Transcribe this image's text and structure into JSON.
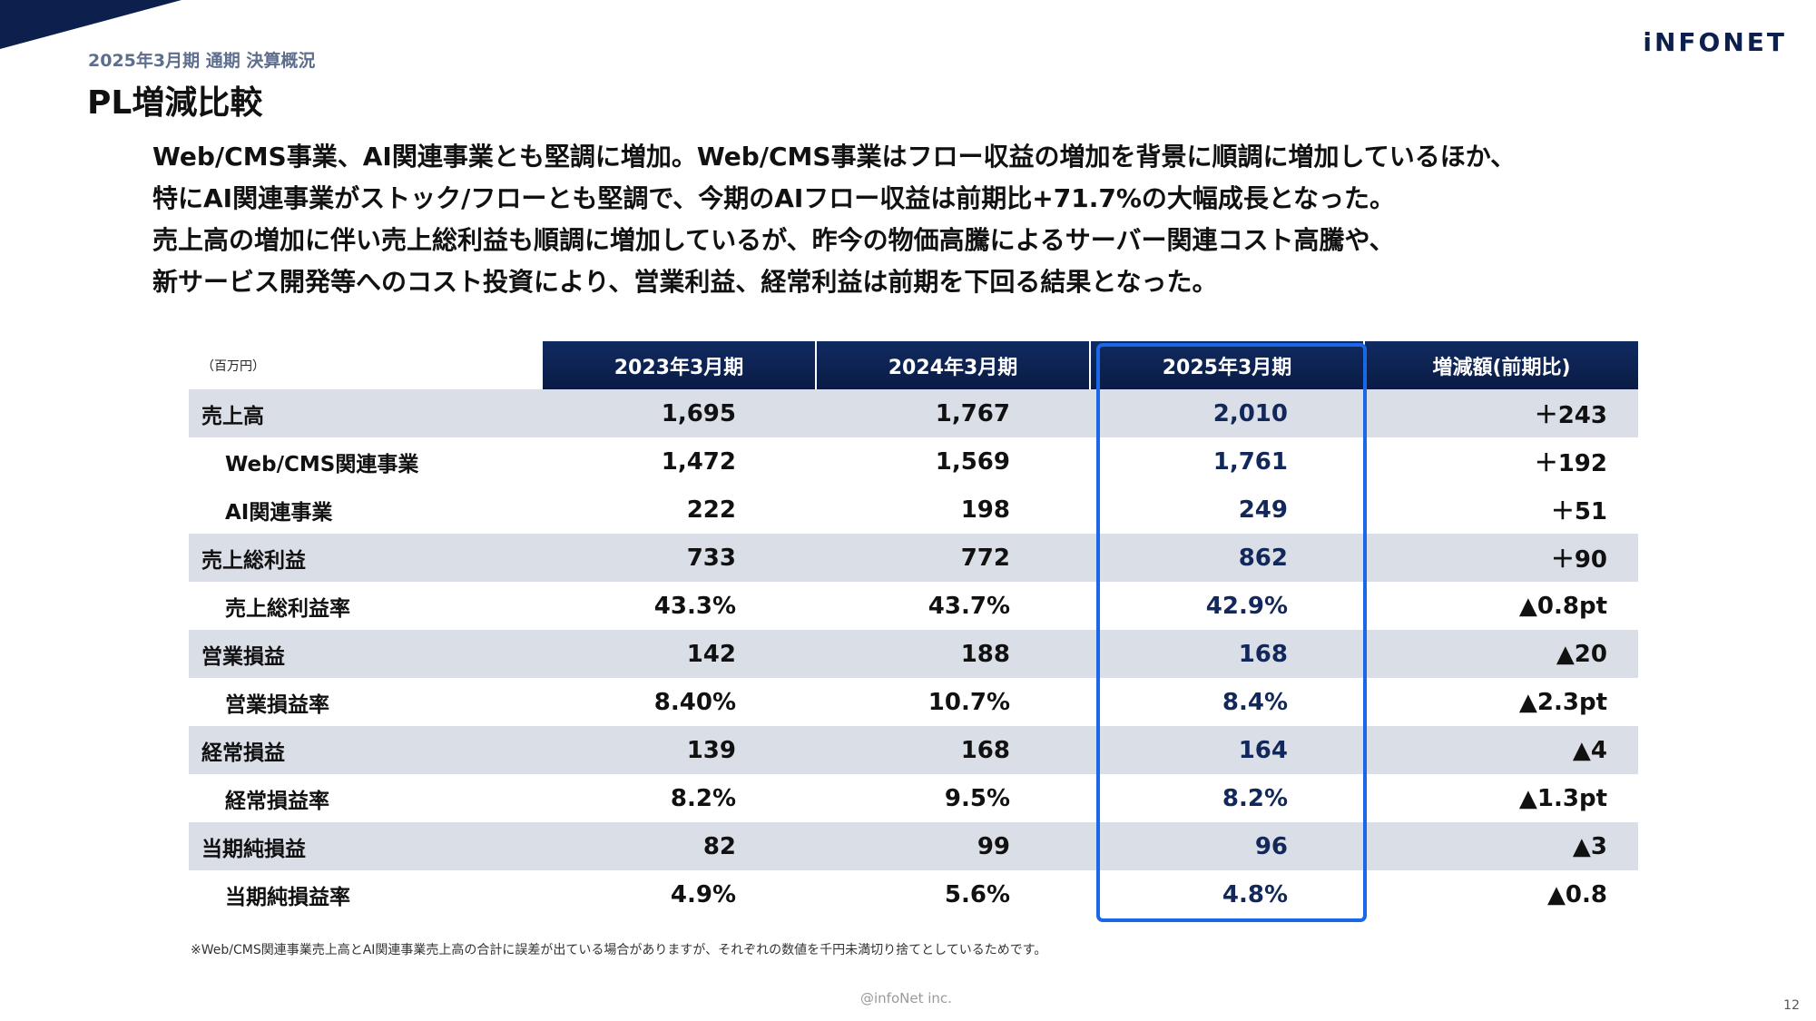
{
  "header": {
    "subtitle": "2025年3月期 通期 決算概況",
    "title": "PL増減比較",
    "logo": "iNFONET"
  },
  "summary": [
    "Web/CMS事業、AI関連事業とも堅調に増加。Web/CMS事業はフロー収益の増加を背景に順調に増加しているほか、",
    "特にAI関連事業がストック/フローとも堅調で、今期のAIフロー収益は前期比+71.7%の大幅成長となった。",
    "売上高の増加に伴い売上総利益も順調に増加しているが、昨今の物価高騰によるサーバー関連コスト高騰や、",
    "新サービス開発等へのコスト投資により、営業利益、経常利益は前期を下回る結果となった。"
  ],
  "table": {
    "unit_label": "（百万円）",
    "columns": [
      "2023年3月期",
      "2024年3月期",
      "2025年3月期",
      "増減額(前期比)"
    ],
    "rows": [
      {
        "label": "売上高",
        "values": [
          "1,695",
          "1,767",
          "2,010",
          "＋243"
        ]
      },
      {
        "label": "Web/CMS関連事業",
        "values": [
          "1,472",
          "1,569",
          "1,761",
          "＋192"
        ]
      },
      {
        "label": "AI関連事業",
        "values": [
          "222",
          "198",
          "249",
          "＋51"
        ]
      },
      {
        "label": "売上総利益",
        "values": [
          "733",
          "772",
          "862",
          "＋90"
        ]
      },
      {
        "label": "売上総利益率",
        "values": [
          "43.3%",
          "43.7%",
          "42.9%",
          "▲0.8pt"
        ]
      },
      {
        "label": "営業損益",
        "values": [
          "142",
          "188",
          "168",
          "▲20"
        ]
      },
      {
        "label": "営業損益率",
        "values": [
          "8.40%",
          "10.7%",
          "8.4%",
          "▲2.3pt"
        ]
      },
      {
        "label": "経常損益",
        "values": [
          "139",
          "168",
          "164",
          "▲4"
        ]
      },
      {
        "label": "経常損益率",
        "values": [
          "8.2%",
          "9.5%",
          "8.2%",
          "▲1.3pt"
        ]
      },
      {
        "label": "当期純損益",
        "values": [
          "82",
          "99",
          "96",
          "▲3"
        ]
      },
      {
        "label": "当期純損益率",
        "values": [
          "4.9%",
          "5.6%",
          "4.8%",
          "▲0.8"
        ]
      }
    ]
  },
  "footnote": "※Web/CMS関連事業売上高とAI関連事業売上高の合計に誤差が出ている場合がありますが、それぞれの数値を千円未満切り捨てとしているためです。",
  "footer": {
    "copyright": "@infoNet inc.",
    "page_number": "12"
  },
  "colors": {
    "header_navy": "#0c1f4d",
    "highlight_blue": "#1a67e8",
    "row_shade": "#d9dee7"
  }
}
